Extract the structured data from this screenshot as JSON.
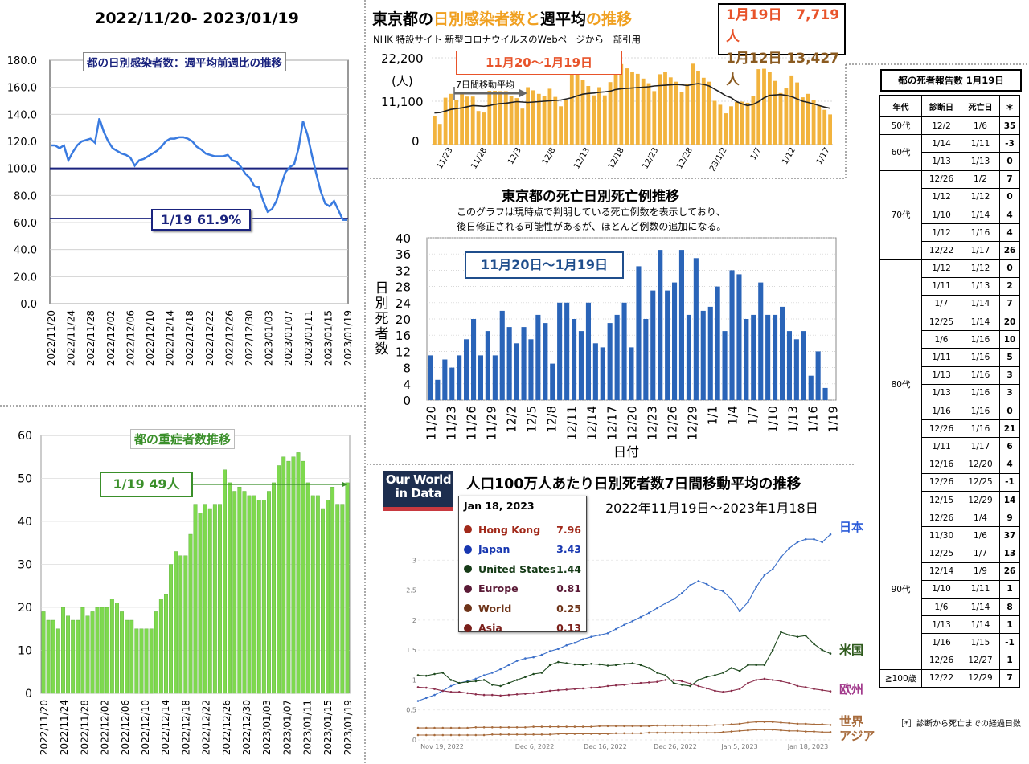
{
  "panel1": {
    "title": "2022/11/20- 2023/01/19",
    "inner_title": "都の日別感染者数：週平均前週比の推移",
    "annotation": "1/19 61.9%",
    "chart_data": {
      "type": "line",
      "y_ticks": [
        "180.0",
        "160.0",
        "140.0",
        "120.0",
        "100.0",
        "80.0",
        "60.0",
        "40.0",
        "20.0",
        "0.0"
      ],
      "ylim": [
        0,
        180
      ],
      "reference_line": 100,
      "x_ticks": [
        "2022/11/20",
        "2022/11/24",
        "2022/11/28",
        "2022/12/02",
        "2022/12/06",
        "2022/12/10",
        "2022/12/14",
        "2022/12/18",
        "2022/12/22",
        "2022/12/26",
        "2022/12/30",
        "2023/01/03",
        "2023/01/07",
        "2023/01/11",
        "2023/01/15",
        "2023/01/19"
      ],
      "values": [
        117,
        117,
        115,
        117,
        106,
        112,
        117,
        120,
        121,
        122,
        119,
        137,
        127,
        120,
        115,
        113,
        111,
        110,
        108,
        102,
        106,
        107,
        109,
        111,
        113,
        116,
        120,
        122,
        122,
        123,
        123,
        122,
        120,
        116,
        114,
        111,
        110,
        109,
        109,
        109,
        110,
        106,
        105,
        101,
        96,
        93,
        87,
        86,
        76,
        68,
        70,
        76,
        87,
        97,
        101,
        103,
        115,
        135,
        125,
        110,
        96,
        83,
        74,
        72,
        76,
        69,
        62,
        61.9
      ]
    }
  },
  "panel2": {
    "title": "都の重症者数推移",
    "annotation": "1/19 49人",
    "chart_data": {
      "type": "bar",
      "y_ticks": [
        "60",
        "50",
        "40",
        "30",
        "20",
        "10",
        "0"
      ],
      "ylim": [
        0,
        60
      ],
      "x_ticks": [
        "2022/11/20",
        "2022/11/24",
        "2022/11/28",
        "2022/12/02",
        "2022/12/06",
        "2022/12/10",
        "2022/12/14",
        "2022/12/18",
        "2022/12/22",
        "2022/12/26",
        "2022/12/30",
        "2023/01/03",
        "2023/01/07",
        "2023/01/11",
        "2023/01/15",
        "2023/01/19"
      ],
      "values": [
        19,
        17,
        17,
        15,
        20,
        18,
        17,
        17,
        20,
        18,
        19,
        20,
        20,
        20,
        22,
        21,
        19,
        17,
        17,
        15,
        15,
        15,
        15,
        19,
        22,
        23,
        30,
        33,
        32,
        32,
        37,
        44,
        42,
        44,
        43,
        44,
        44,
        52,
        49,
        47,
        48,
        47,
        46,
        46,
        45,
        45,
        47,
        49,
        53,
        55,
        54,
        55,
        56,
        54,
        49,
        46,
        46,
        43,
        45,
        48,
        44,
        44,
        49
      ]
    }
  },
  "panel3": {
    "title_a": "東京都の",
    "title_b": "日別感染者数と",
    "title_c": "週平均",
    "title_d": "の推移",
    "subtitle": "NHK 特設サイト 新型コロナウイルスのWebページから一部引用",
    "box_line1_date": "1月19日",
    "box_line1_value": "7,719人",
    "box_line2_date": "1月12日",
    "box_line2_value": "13,427人",
    "period_label": "11月20〜1月19日",
    "legend": "7日間移動平均",
    "y_unit": "(人)",
    "chart_data": {
      "type": "bar",
      "y_ticks": [
        "22,200",
        "11,100",
        "0"
      ],
      "ylim": [
        0,
        22200
      ],
      "x_ticks": [
        "11/23",
        "11/28",
        "12/3",
        "12/8",
        "12/13",
        "12/18",
        "12/23",
        "12/28",
        "23/1/2",
        "1/7",
        "1/12",
        "1/17"
      ],
      "values": [
        7300,
        5300,
        12000,
        13000,
        11500,
        13200,
        12300,
        12300,
        8600,
        8200,
        15600,
        14200,
        13700,
        13700,
        12400,
        11900,
        9200,
        14700,
        13900,
        13000,
        12400,
        14300,
        12200,
        9800,
        11300,
        18400,
        18300,
        16600,
        15000,
        12600,
        14700,
        12600,
        16000,
        20100,
        20600,
        19500,
        18500,
        18100,
        16900,
        15700,
        13700,
        18000,
        18500,
        17200,
        16100,
        13400,
        15500,
        20700,
        18800,
        17100,
        16100,
        11200,
        10200,
        8000,
        9800,
        10900,
        11000,
        10700,
        12400,
        19300,
        19400,
        18500,
        16300,
        13200,
        14600,
        17700,
        15900,
        12100,
        13000,
        11400,
        9900,
        8900,
        7719
      ],
      "moving_average": [
        8100,
        8200,
        8600,
        9000,
        9200,
        9400,
        9700,
        10000,
        9900,
        9800,
        10000,
        10300,
        10500,
        10600,
        10800,
        11000,
        10900,
        10800,
        10900,
        11000,
        11100,
        11200,
        11300,
        11400,
        11700,
        12000,
        12500,
        12900,
        13100,
        13200,
        13400,
        13500,
        13700,
        14100,
        14300,
        14400,
        14500,
        14600,
        14700,
        14800,
        15000,
        15100,
        15200,
        15300,
        15400,
        15300,
        15100,
        15400,
        15600,
        15400,
        15000,
        14200,
        13400,
        12500,
        12000,
        11000,
        10400,
        10000,
        10300,
        11000,
        12000,
        12600,
        12700,
        12800,
        12600,
        12300,
        11700,
        11100,
        10800,
        10400,
        10000,
        9600,
        9300
      ]
    }
  },
  "panel4": {
    "title": "東京都の死亡日別死亡例推移",
    "note1": "このグラフは現時点で判明している死亡例数を表示しており、",
    "note2": "後日修正される可能性があるが、ほとんど例数の追加になる。",
    "period_label": "11月20日〜1月19日",
    "ylabel_chars": [
      "日",
      "別",
      "死",
      "者",
      "数"
    ],
    "xlabel": "日付",
    "chart_data": {
      "type": "bar",
      "y_ticks": [
        "40",
        "36",
        "32",
        "28",
        "24",
        "20",
        "16",
        "12",
        "8",
        "4",
        "0"
      ],
      "ylim": [
        0,
        40
      ],
      "x_ticks": [
        "11/20",
        "11/23",
        "11/26",
        "11/29",
        "12/2",
        "12/5",
        "12/8",
        "12/11",
        "12/14",
        "12/17",
        "12/20",
        "12/23",
        "12/26",
        "12/29",
        "1/1",
        "1/4",
        "1/7",
        "1/10",
        "1/13",
        "1/16",
        "1/19"
      ],
      "values": [
        11,
        5,
        10,
        8,
        11,
        15,
        20,
        11,
        17,
        11,
        22,
        18,
        14,
        18,
        15,
        21,
        19,
        9,
        24,
        24,
        20,
        17,
        24,
        14,
        13,
        19,
        21,
        24,
        13,
        33,
        20,
        27,
        37,
        27,
        29,
        37,
        21,
        35,
        22,
        23,
        28,
        17,
        32,
        31,
        20,
        21,
        29,
        21,
        21,
        23,
        17,
        15,
        17,
        6,
        12,
        3,
        0
      ]
    }
  },
  "panel5": {
    "logo_line1": "Our World",
    "logo_line2": "in Data",
    "title": "人口100万人あたり日別死者数7日間移動平均の推移",
    "subtitle": "2022年11月19日〜2023年1月18日",
    "tooltip_date": "Jan 18, 2023",
    "tooltip_rows": [
      {
        "name": "Hong Kong",
        "value": "7.96",
        "color": "#a1291a"
      },
      {
        "name": "Japan",
        "value": "3.43",
        "color": "#1736b0"
      },
      {
        "name": "United States",
        "value": "1.44",
        "color": "#163b17"
      },
      {
        "name": "Europe",
        "value": "0.81",
        "color": "#5a1a36"
      },
      {
        "name": "World",
        "value": "0.25",
        "color": "#6e3419"
      },
      {
        "name": "Asia",
        "value": "0.13",
        "color": "#7a1f1a"
      }
    ],
    "labels": {
      "japan": "日本",
      "us": "米国",
      "europe": "欧州",
      "world": "世界",
      "asia": "アジア"
    },
    "chart_data": {
      "type": "line",
      "y_ticks": [
        "3",
        "2.5",
        "2",
        "1.5",
        "1",
        "0.5",
        "0"
      ],
      "ylim": [
        0,
        3.5
      ],
      "x_ticks": [
        "Nov 19, 2022",
        "Dec 6, 2022",
        "Dec 16, 2022",
        "Dec 26, 2022",
        "Jan 5, 2023",
        "Jan 18, 2023"
      ],
      "series": [
        {
          "name": "Japan",
          "color": "#3b6fc9",
          "values": [
            0.65,
            0.7,
            0.75,
            0.82,
            0.9,
            0.95,
            0.98,
            1.02,
            1.08,
            1.12,
            1.18,
            1.25,
            1.32,
            1.36,
            1.38,
            1.42,
            1.48,
            1.52,
            1.58,
            1.62,
            1.68,
            1.72,
            1.75,
            1.78,
            1.85,
            1.92,
            1.98,
            2.05,
            2.12,
            2.2,
            2.28,
            2.35,
            2.45,
            2.58,
            2.65,
            2.6,
            2.52,
            2.48,
            2.35,
            2.15,
            2.3,
            2.55,
            2.75,
            2.85,
            3.05,
            3.2,
            3.3,
            3.35,
            3.35,
            3.3,
            3.43
          ]
        },
        {
          "name": "United States",
          "color": "#1f4a1f",
          "values": [
            1.08,
            1.07,
            1.1,
            1.12,
            1.0,
            0.95,
            0.97,
            0.98,
            1.0,
            0.92,
            0.9,
            0.95,
            1.0,
            1.05,
            1.1,
            1.12,
            1.25,
            1.3,
            1.28,
            1.26,
            1.25,
            1.27,
            1.26,
            1.24,
            1.25,
            1.27,
            1.28,
            1.25,
            1.2,
            1.12,
            1.08,
            0.95,
            0.92,
            0.9,
            1.0,
            1.05,
            1.08,
            1.12,
            1.2,
            1.15,
            1.25,
            1.25,
            1.25,
            1.5,
            1.8,
            1.75,
            1.72,
            1.74,
            1.6,
            1.5,
            1.44
          ]
        },
        {
          "name": "Europe",
          "color": "#8b2d4c",
          "values": [
            0.88,
            0.87,
            0.85,
            0.82,
            0.8,
            0.8,
            0.78,
            0.76,
            0.75,
            0.75,
            0.74,
            0.75,
            0.76,
            0.77,
            0.78,
            0.8,
            0.82,
            0.83,
            0.84,
            0.85,
            0.86,
            0.87,
            0.88,
            0.9,
            0.91,
            0.92,
            0.94,
            0.95,
            0.96,
            0.97,
            1.0,
            1.0,
            0.98,
            0.94,
            0.9,
            0.86,
            0.82,
            0.8,
            0.82,
            0.85,
            0.95,
            1.0,
            1.02,
            1.0,
            0.98,
            0.95,
            0.9,
            0.88,
            0.85,
            0.83,
            0.81
          ]
        },
        {
          "name": "World",
          "color": "#a76b3c",
          "values": [
            0.2,
            0.2,
            0.2,
            0.2,
            0.2,
            0.2,
            0.2,
            0.21,
            0.21,
            0.21,
            0.21,
            0.21,
            0.21,
            0.21,
            0.22,
            0.22,
            0.22,
            0.22,
            0.22,
            0.22,
            0.22,
            0.22,
            0.23,
            0.23,
            0.23,
            0.23,
            0.23,
            0.23,
            0.23,
            0.24,
            0.24,
            0.24,
            0.24,
            0.24,
            0.24,
            0.24,
            0.25,
            0.25,
            0.26,
            0.27,
            0.29,
            0.3,
            0.3,
            0.3,
            0.29,
            0.28,
            0.27,
            0.27,
            0.26,
            0.26,
            0.25
          ]
        },
        {
          "name": "Asia",
          "color": "#a76b3c",
          "values": [
            0.08,
            0.08,
            0.08,
            0.08,
            0.08,
            0.08,
            0.08,
            0.08,
            0.08,
            0.09,
            0.09,
            0.09,
            0.09,
            0.09,
            0.09,
            0.09,
            0.09,
            0.1,
            0.1,
            0.1,
            0.1,
            0.1,
            0.1,
            0.1,
            0.11,
            0.11,
            0.11,
            0.11,
            0.12,
            0.12,
            0.12,
            0.12,
            0.12,
            0.12,
            0.12,
            0.12,
            0.12,
            0.13,
            0.14,
            0.15,
            0.16,
            0.17,
            0.17,
            0.17,
            0.16,
            0.15,
            0.15,
            0.14,
            0.14,
            0.13,
            0.13
          ]
        }
      ]
    }
  },
  "table": {
    "title": "都の死者報告数 1月19日",
    "headers": [
      "年代",
      "診断日",
      "死亡日",
      "＊"
    ],
    "groups": [
      {
        "age": "50代",
        "rows": [
          [
            "12/2",
            "1/6",
            "35"
          ]
        ]
      },
      {
        "age": "60代",
        "rows": [
          [
            "1/14",
            "1/11",
            "-3"
          ],
          [
            "1/13",
            "1/13",
            "0"
          ]
        ]
      },
      {
        "age": "70代",
        "rows": [
          [
            "12/26",
            "1/2",
            "7"
          ],
          [
            "1/12",
            "1/12",
            "0"
          ],
          [
            "1/10",
            "1/14",
            "4"
          ],
          [
            "1/12",
            "1/16",
            "4"
          ],
          [
            "12/22",
            "1/17",
            "26"
          ]
        ]
      },
      {
        "age": "80代",
        "rows": [
          [
            "1/12",
            "1/12",
            "0"
          ],
          [
            "1/11",
            "1/13",
            "2"
          ],
          [
            "1/7",
            "1/14",
            "7"
          ],
          [
            "12/25",
            "1/14",
            "20"
          ],
          [
            "1/6",
            "1/16",
            "10"
          ],
          [
            "1/11",
            "1/16",
            "5"
          ],
          [
            "1/13",
            "1/16",
            "3"
          ],
          [
            "1/13",
            "1/16",
            "3"
          ],
          [
            "1/16",
            "1/16",
            "0"
          ],
          [
            "12/26",
            "1/16",
            "21"
          ],
          [
            "1/11",
            "1/17",
            "6"
          ],
          [
            "12/16",
            "12/20",
            "4"
          ],
          [
            "12/26",
            "12/25",
            "-1"
          ],
          [
            "12/15",
            "12/29",
            "14"
          ]
        ]
      },
      {
        "age": "90代",
        "rows": [
          [
            "12/26",
            "1/4",
            "9"
          ],
          [
            "11/30",
            "1/6",
            "37"
          ],
          [
            "12/25",
            "1/7",
            "13"
          ],
          [
            "12/14",
            "1/9",
            "26"
          ],
          [
            "1/10",
            "1/11",
            "1"
          ],
          [
            "1/6",
            "1/14",
            "8"
          ],
          [
            "1/13",
            "1/14",
            "1"
          ],
          [
            "1/16",
            "1/15",
            "-1"
          ],
          [
            "12/26",
            "12/27",
            "1"
          ]
        ]
      },
      {
        "age": "≧100歳",
        "rows": [
          [
            "12/22",
            "12/29",
            "7"
          ]
        ]
      }
    ],
    "footnote": "［*］診断から死亡までの経過日数"
  }
}
